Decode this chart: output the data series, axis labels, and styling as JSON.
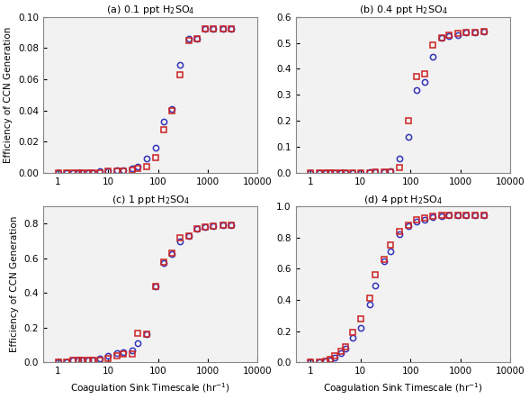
{
  "panels": [
    {
      "title": "(a) 0.1 ppt H$_2$SO$_4$",
      "ylim": [
        0,
        0.1
      ],
      "yticks": [
        0,
        0.02,
        0.04,
        0.06,
        0.08,
        0.1
      ],
      "red_x": [
        1.0,
        1.5,
        2.0,
        2.5,
        3.0,
        4.0,
        5.0,
        7.0,
        10.0,
        15.0,
        20.0,
        30.0,
        40.0,
        60.0,
        90.0,
        130.0,
        190.0,
        280.0,
        420.0,
        600.0,
        900.0,
        1300.0,
        2000.0,
        3000.0
      ],
      "red_y": [
        0.0,
        0.0,
        0.0,
        0.0,
        0.0,
        0.0,
        0.0,
        0.0,
        0.001,
        0.001,
        0.001,
        0.002,
        0.003,
        0.004,
        0.01,
        0.028,
        0.04,
        0.063,
        0.085,
        0.086,
        0.092,
        0.092,
        0.092,
        0.092
      ],
      "blue_x": [
        1.0,
        1.5,
        2.0,
        2.5,
        3.0,
        4.0,
        5.0,
        7.0,
        10.0,
        15.0,
        20.0,
        30.0,
        40.0,
        60.0,
        90.0,
        130.0,
        190.0,
        280.0,
        420.0,
        600.0,
        900.0,
        1300.0,
        2000.0,
        3000.0
      ],
      "blue_y": [
        0.0,
        0.0,
        0.0,
        0.0,
        0.0,
        0.0,
        0.0,
        0.001,
        0.001,
        0.002,
        0.002,
        0.003,
        0.004,
        0.009,
        0.016,
        0.033,
        0.041,
        0.069,
        0.086,
        0.086,
        0.092,
        0.092,
        0.092,
        0.092
      ]
    },
    {
      "title": "(b) 0.4 ppt H$_2$SO$_4$",
      "ylim": [
        0,
        0.6
      ],
      "yticks": [
        0,
        0.1,
        0.2,
        0.3,
        0.4,
        0.5,
        0.6
      ],
      "red_x": [
        1.0,
        1.5,
        2.0,
        2.5,
        3.0,
        4.0,
        5.0,
        7.0,
        10.0,
        15.0,
        20.0,
        30.0,
        40.0,
        60.0,
        90.0,
        130.0,
        190.0,
        280.0,
        420.0,
        600.0,
        900.0,
        1300.0,
        2000.0,
        3000.0
      ],
      "red_y": [
        0.0,
        0.0,
        0.0,
        0.0,
        0.0,
        0.0,
        0.0,
        0.0,
        0.001,
        0.001,
        0.002,
        0.003,
        0.005,
        0.02,
        0.2,
        0.37,
        0.38,
        0.49,
        0.52,
        0.53,
        0.535,
        0.54,
        0.54,
        0.545
      ],
      "blue_x": [
        1.0,
        1.5,
        2.0,
        2.5,
        3.0,
        4.0,
        5.0,
        7.0,
        10.0,
        15.0,
        20.0,
        30.0,
        40.0,
        60.0,
        90.0,
        130.0,
        190.0,
        280.0,
        420.0,
        600.0,
        900.0,
        1300.0,
        2000.0,
        3000.0
      ],
      "blue_y": [
        0.0,
        0.0,
        0.0,
        0.0,
        0.0,
        0.0,
        0.0,
        0.0,
        0.001,
        0.002,
        0.003,
        0.005,
        0.008,
        0.055,
        0.14,
        0.32,
        0.35,
        0.445,
        0.52,
        0.525,
        0.53,
        0.54,
        0.54,
        0.545
      ]
    },
    {
      "title": "(c) 1 ppt H$_2$SO$_4$",
      "ylim": [
        0,
        0.9
      ],
      "yticks": [
        0,
        0.2,
        0.4,
        0.6,
        0.8
      ],
      "red_x": [
        1.0,
        1.5,
        2.0,
        2.5,
        3.0,
        4.0,
        5.0,
        7.0,
        10.0,
        15.0,
        20.0,
        30.0,
        40.0,
        60.0,
        90.0,
        130.0,
        190.0,
        280.0,
        420.0,
        600.0,
        900.0,
        1300.0,
        2000.0,
        3000.0
      ],
      "red_y": [
        0.0,
        0.0,
        0.01,
        0.01,
        0.01,
        0.01,
        0.01,
        0.01,
        0.02,
        0.04,
        0.05,
        0.05,
        0.17,
        0.165,
        0.44,
        0.58,
        0.63,
        0.72,
        0.73,
        0.77,
        0.78,
        0.785,
        0.79,
        0.79
      ],
      "blue_x": [
        1.0,
        1.5,
        2.0,
        2.5,
        3.0,
        4.0,
        5.0,
        7.0,
        10.0,
        15.0,
        20.0,
        30.0,
        40.0,
        60.0,
        90.0,
        130.0,
        190.0,
        280.0,
        420.0,
        600.0,
        900.0,
        1300.0,
        2000.0,
        3000.0
      ],
      "blue_y": [
        0.0,
        0.0,
        0.01,
        0.01,
        0.01,
        0.01,
        0.01,
        0.02,
        0.04,
        0.055,
        0.06,
        0.07,
        0.11,
        0.165,
        0.44,
        0.57,
        0.625,
        0.695,
        0.73,
        0.77,
        0.78,
        0.785,
        0.79,
        0.79
      ]
    },
    {
      "title": "(d) 4 ppt H$_2$SO$_4$",
      "ylim": [
        0,
        1.0
      ],
      "yticks": [
        0,
        0.2,
        0.4,
        0.6,
        0.8,
        1.0
      ],
      "red_x": [
        1.0,
        1.5,
        2.0,
        2.5,
        3.0,
        4.0,
        5.0,
        7.0,
        10.0,
        15.0,
        20.0,
        30.0,
        40.0,
        60.0,
        90.0,
        130.0,
        190.0,
        280.0,
        420.0,
        600.0,
        900.0,
        1300.0,
        2000.0,
        3000.0
      ],
      "red_y": [
        0.0,
        0.0,
        0.01,
        0.02,
        0.04,
        0.07,
        0.1,
        0.19,
        0.28,
        0.41,
        0.56,
        0.66,
        0.75,
        0.84,
        0.88,
        0.91,
        0.925,
        0.935,
        0.94,
        0.94,
        0.94,
        0.94,
        0.94,
        0.94
      ],
      "blue_x": [
        1.0,
        1.5,
        2.0,
        2.5,
        3.0,
        4.0,
        5.0,
        7.0,
        10.0,
        15.0,
        20.0,
        30.0,
        40.0,
        60.0,
        90.0,
        130.0,
        190.0,
        280.0,
        420.0,
        600.0,
        900.0,
        1300.0,
        2000.0,
        3000.0
      ],
      "blue_y": [
        0.0,
        0.0,
        0.01,
        0.015,
        0.03,
        0.06,
        0.09,
        0.16,
        0.22,
        0.37,
        0.49,
        0.65,
        0.71,
        0.82,
        0.87,
        0.9,
        0.915,
        0.93,
        0.935,
        0.94,
        0.94,
        0.94,
        0.94,
        0.94
      ]
    }
  ],
  "xlim": [
    0.5,
    10000
  ],
  "xticks": [
    1,
    10,
    100,
    1000,
    10000
  ],
  "xlabel": "Coagulation Sink Timescale (hr$^{-1}$)",
  "ylabel": "Efficiency of CCN Generation",
  "red_color": "#cc2222",
  "blue_color": "#3333bb",
  "marker_size": 4.5,
  "background_color": "#f0f0f0"
}
